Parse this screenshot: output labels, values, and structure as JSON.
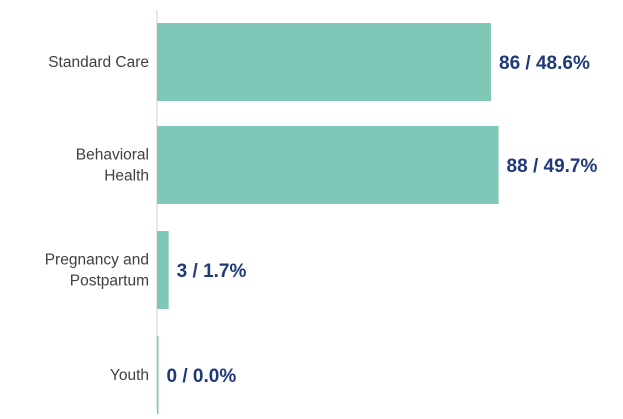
{
  "chart_data": {
    "type": "bar",
    "orientation": "horizontal",
    "categories": [
      [
        "Standard Care"
      ],
      [
        "Behavioral",
        "Health"
      ],
      [
        "Pregnancy and",
        "Postpartum"
      ],
      [
        "Youth"
      ]
    ],
    "series": [
      {
        "values": [
          86,
          88,
          3,
          0
        ],
        "percent": [
          48.6,
          49.7,
          1.7,
          0.0
        ],
        "labels": [
          "86 / 48.6%",
          "88 / 49.7%",
          "3 / 1.7%",
          "0 / 0.0%"
        ]
      }
    ],
    "xlim": [
      0,
      100
    ],
    "grid": false,
    "legend": "none",
    "colors": {
      "bar": "#7fc8b8",
      "data_label": "#1f3a7a",
      "category_label": "#404040",
      "axis": "#d0d0d0"
    }
  }
}
